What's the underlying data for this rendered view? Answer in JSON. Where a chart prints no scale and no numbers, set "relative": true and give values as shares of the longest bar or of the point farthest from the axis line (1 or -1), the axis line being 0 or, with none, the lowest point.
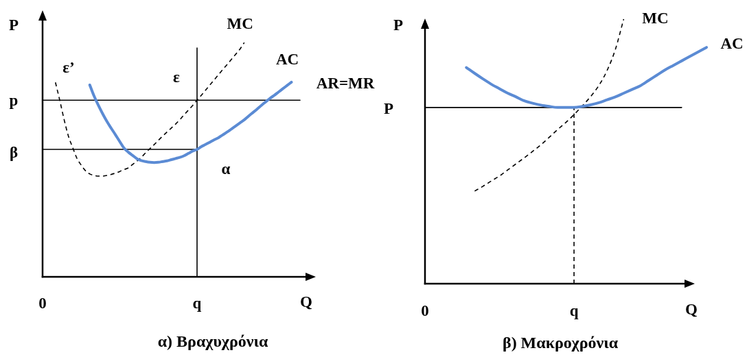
{
  "chart_data": [
    {
      "type": "line",
      "relative": true,
      "title": "α) Βραχυχρόνια",
      "xlabel": "Q",
      "ylabel": "P",
      "categories": [
        "0",
        null,
        null,
        null,
        null,
        null,
        null,
        null,
        null,
        null,
        null,
        null,
        null,
        null,
        null,
        null,
        null,
        null,
        null,
        null,
        null,
        null,
        null,
        null,
        null,
        null,
        null,
        null,
        null,
        null,
        null,
        null,
        null,
        null,
        null,
        null,
        "q",
        null,
        null,
        null,
        null,
        null,
        null,
        null,
        null,
        null,
        null,
        null,
        null,
        null,
        null,
        null,
        null,
        null,
        null,
        null,
        null,
        null,
        null,
        null,
        null
      ],
      "series": [
        {
          "name": "AC",
          "color": "#5b8bd4",
          "values": [
            null,
            null,
            null,
            null,
            null,
            null,
            null,
            null,
            null,
            null,
            null,
            0.819,
            0.772,
            0.732,
            0.696,
            0.663,
            0.634,
            0.606,
            0.577,
            0.549,
            0.532,
            0.518,
            0.504,
            0.496,
            0.492,
            0.489,
            0.488,
            0.489,
            0.492,
            0.495,
            0.5,
            0.505,
            0.51,
            0.517,
            0.527,
            0.537,
            0.544,
            0.556,
            0.565,
            0.575,
            0.585,
            0.594,
            0.606,
            0.618,
            0.631,
            0.644,
            0.657,
            0.67,
            0.686,
            0.701,
            0.716,
            0.732,
            0.747,
            0.762,
            0.775,
            0.789,
            0.803,
            0.817,
            0.831,
            null,
            null
          ]
        },
        {
          "name": "MC",
          "color": "#000000",
          "line_style": "dashed",
          "values": [
            null,
            null,
            null,
            0.83,
            0.754,
            0.673,
            0.602,
            0.553,
            0.506,
            0.477,
            0.453,
            0.439,
            0.433,
            0.43,
            0.43,
            0.433,
            0.437,
            0.443,
            0.45,
            0.458,
            0.465,
            0.48,
            0.494,
            0.51,
            0.529,
            0.547,
            0.564,
            0.583,
            0.601,
            0.618,
            0.635,
            0.652,
            0.671,
            0.692,
            0.712,
            0.732,
            0.754,
            0.775,
            0.797,
            0.819,
            0.841,
            0.863,
            0.885,
            0.906,
            0.928,
            0.95,
            0.972,
            1,
            null,
            null,
            null,
            null,
            null,
            null,
            null,
            null,
            null,
            null,
            null,
            null,
            null
          ]
        },
        {
          "name": "AR=MR",
          "color": "#000000",
          "values": [
            0.754,
            0.754,
            0.754,
            0.754,
            0.754,
            0.754,
            0.754,
            0.754,
            0.754,
            0.754,
            0.754,
            0.754,
            0.754,
            0.754,
            0.754,
            0.754,
            0.754,
            0.754,
            0.754,
            0.754,
            0.754,
            0.754,
            0.754,
            0.754,
            0.754,
            0.754,
            0.754,
            0.754,
            0.754,
            0.754,
            0.754,
            0.754,
            0.754,
            0.754,
            0.754,
            0.754,
            0.754,
            0.754,
            0.754,
            0.754,
            0.754,
            0.754,
            0.754,
            0.754,
            0.754,
            0.754,
            0.754,
            0.754,
            0.754,
            0.754,
            0.754,
            0.754,
            0.754,
            0.754,
            0.754,
            0.754,
            0.754,
            0.754,
            0.754,
            0.754,
            0.754
          ]
        },
        {
          "color": "#000000",
          "values": [
            0.544,
            0.544,
            0.544,
            0.544,
            0.544,
            0.544,
            0.544,
            0.544,
            0.544,
            0.544,
            0.544,
            0.544,
            0.544,
            0.544,
            0.544,
            0.544,
            0.544,
            0.544,
            0.544,
            0.544,
            0.544,
            0.544,
            0.544,
            0.544,
            0.544,
            0.544,
            0.544,
            0.544,
            0.544,
            0.544,
            0.544,
            0.544,
            0.544,
            0.544,
            0.544,
            0.544,
            0.544,
            null,
            null,
            null,
            null,
            null,
            null,
            null,
            null,
            null,
            null,
            null,
            null,
            null,
            null,
            null,
            null,
            null,
            null,
            null,
            null,
            null,
            null,
            null,
            null
          ]
        },
        {
          "color": "#000000",
          "x": [
            "q",
            "q"
          ],
          "values": [
            0,
            0.977
          ]
        }
      ],
      "annotations": [
        "p",
        "β",
        "ε’",
        {
          "text": "ε",
          "x": "q",
          "y": 0.754
        },
        {
          "text": "α",
          "x": "q",
          "y": 0.544
        }
      ]
    },
    {
      "type": "line",
      "relative": true,
      "title": "β) Μακροχρόνια",
      "xlabel": "Q",
      "ylabel": "P",
      "categories": [
        "0",
        null,
        null,
        null,
        null,
        null,
        null,
        null,
        null,
        null,
        null,
        null,
        null,
        null,
        null,
        null,
        null,
        null,
        "q",
        null,
        null,
        null,
        null,
        null,
        null,
        null,
        null,
        null,
        null,
        null,
        null,
        null,
        null,
        null,
        null
      ],
      "series": [
        {
          "name": "AC",
          "color": "#5b8bd4",
          "values": [
            null,
            null,
            null,
            null,
            null,
            0.817,
            0.795,
            0.774,
            0.754,
            0.737,
            0.72,
            0.706,
            0.691,
            0.682,
            0.675,
            0.67,
            0.666,
            0.666,
            0.666,
            0.67,
            0.676,
            0.684,
            0.695,
            0.706,
            0.72,
            0.734,
            0.748,
            0.768,
            0.788,
            0.808,
            0.825,
            0.842,
            0.859,
            0.876,
            0.893
          ]
        },
        {
          "name": "MC",
          "color": "#000000",
          "line_style": "dashed",
          "values": [
            null,
            null,
            null,
            null,
            null,
            null,
            0.35,
            0.368,
            0.388,
            0.407,
            0.43,
            0.453,
            0.476,
            0.5,
            0.525,
            0.553,
            0.582,
            0.609,
            0.639,
            0.672,
            0.707,
            0.749,
            0.806,
            0.886,
            1,
            null,
            null,
            null,
            null,
            null,
            null,
            null,
            null,
            null,
            null
          ]
        },
        {
          "color": "#000000",
          "values": [
            0.666,
            0.666,
            0.666,
            0.666,
            0.666,
            0.666,
            0.666,
            0.666,
            0.666,
            0.666,
            0.666,
            0.666,
            0.666,
            0.666,
            0.666,
            0.666,
            0.666,
            0.666,
            0.666,
            0.666,
            0.666,
            0.666,
            0.666,
            0.666,
            0.666,
            0.666,
            0.666,
            0.666,
            0.666,
            0.666,
            0.666,
            0.666,
            null,
            null,
            null
          ]
        },
        {
          "color": "#000000",
          "line_style": "dashed",
          "x": [
            "q",
            "q"
          ],
          "values": [
            0,
            0.666
          ]
        }
      ],
      "annotations": [
        "P"
      ]
    }
  ]
}
